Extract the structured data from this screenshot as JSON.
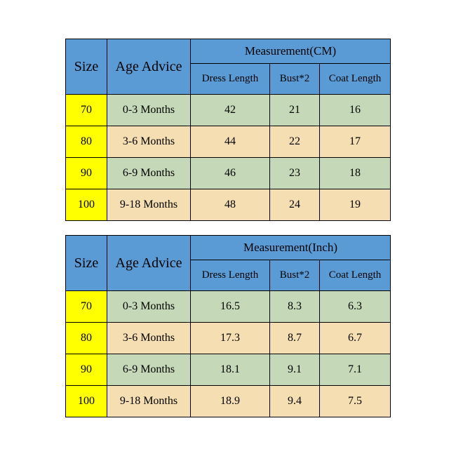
{
  "colors": {
    "header_bg": "#5b9bd5",
    "size_bg": "#ffff00",
    "row_green": "#c5d9b8",
    "row_tan": "#f5deb2",
    "border": "#000000"
  },
  "tables": [
    {
      "size_header": "Size",
      "age_header": "Age Advice",
      "meas_header": "Measurement(CM)",
      "sub_headers": [
        "Dress Length",
        "Bust*2",
        "Coat Length"
      ],
      "rows": [
        {
          "size": "70",
          "age": "0-3 Months",
          "vals": [
            "42",
            "21",
            "16"
          ]
        },
        {
          "size": "80",
          "age": "3-6 Months",
          "vals": [
            "44",
            "22",
            "17"
          ]
        },
        {
          "size": "90",
          "age": "6-9 Months",
          "vals": [
            "46",
            "23",
            "18"
          ]
        },
        {
          "size": "100",
          "age": "9-18 Months",
          "vals": [
            "48",
            "24",
            "19"
          ]
        }
      ]
    },
    {
      "size_header": "Size",
      "age_header": "Age Advice",
      "meas_header": "Measurement(Inch)",
      "sub_headers": [
        "Dress Length",
        "Bust*2",
        "Coat Length"
      ],
      "rows": [
        {
          "size": "70",
          "age": "0-3 Months",
          "vals": [
            "16.5",
            "8.3",
            "6.3"
          ]
        },
        {
          "size": "80",
          "age": "3-6 Months",
          "vals": [
            "17.3",
            "8.7",
            "6.7"
          ]
        },
        {
          "size": "90",
          "age": "6-9 Months",
          "vals": [
            "18.1",
            "9.1",
            "7.1"
          ]
        },
        {
          "size": "100",
          "age": "9-18 Months",
          "vals": [
            "18.9",
            "9.4",
            "7.5"
          ]
        }
      ]
    }
  ]
}
